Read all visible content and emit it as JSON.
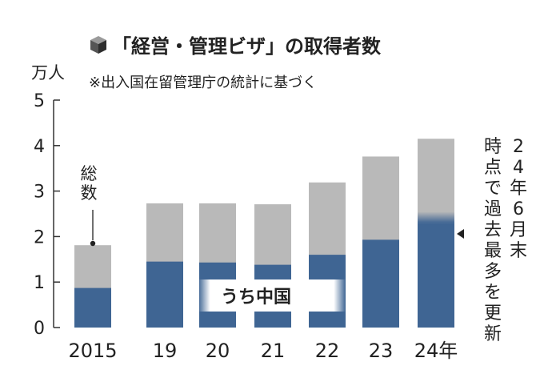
{
  "chart_data": {
    "type": "bar",
    "title": "「経営・管理ビザ」の取得者数",
    "subtitle": "※出入国在留管理庁の統計に基づく",
    "ylabel": "万人",
    "ylim": [
      0,
      5
    ],
    "yticks": [
      0,
      1,
      2,
      3,
      4,
      5
    ],
    "categories": [
      "2015",
      "19",
      "20",
      "21",
      "22",
      "23",
      "24年"
    ],
    "series": [
      {
        "name": "うち中国",
        "values": [
          0.87,
          1.45,
          1.43,
          1.38,
          1.6,
          1.93,
          2.3
        ]
      },
      {
        "name": "総数",
        "values": [
          1.81,
          2.73,
          2.73,
          2.71,
          3.19,
          3.76,
          4.15
        ]
      }
    ],
    "annotations": {
      "total_label": "総数",
      "china_label": "うち中国",
      "note_2024": "24年6月末時点で過去最多を更新"
    },
    "colors": {
      "china": "#3f6593",
      "total": "#b9b9b9",
      "axis": "#333333",
      "text": "#222222"
    }
  }
}
